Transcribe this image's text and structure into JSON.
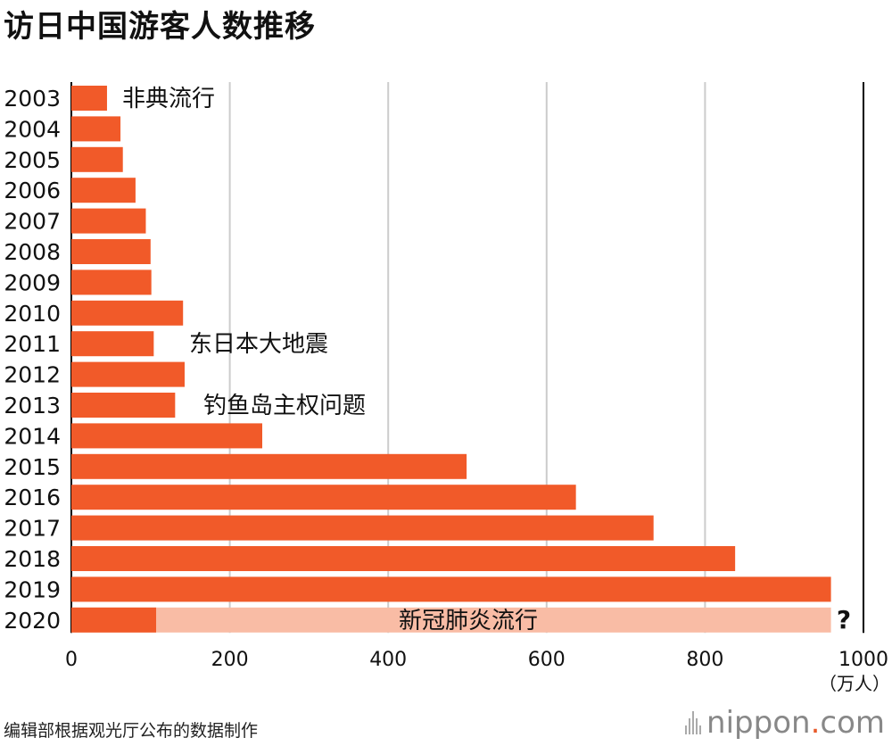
{
  "title": "访日中国游客人数推移",
  "chart_data": {
    "type": "bar",
    "orientation": "horizontal",
    "categories": [
      "2003",
      "2004",
      "2005",
      "2006",
      "2007",
      "2008",
      "2009",
      "2010",
      "2011",
      "2012",
      "2013",
      "2014",
      "2015",
      "2016",
      "2017",
      "2018",
      "2019",
      "2020"
    ],
    "values": [
      45,
      62,
      65,
      81,
      94,
      100,
      101,
      141,
      104,
      143,
      131,
      241,
      499,
      637,
      735,
      838,
      959,
      107
    ],
    "projection": {
      "category": "2020",
      "value": 959
    },
    "xlim": [
      0,
      1000
    ],
    "xticks": [
      0,
      200,
      400,
      600,
      800,
      1000
    ],
    "xtick_labels": [
      "0",
      "200",
      "400",
      "600",
      "800",
      "1000"
    ],
    "unit_label": "（万人）",
    "grid": true,
    "annotations": [
      {
        "category": "2003",
        "text": "非典流行"
      },
      {
        "category": "2011",
        "text": "东日本大地震"
      },
      {
        "category": "2013",
        "text": "钓鱼岛主权问题"
      },
      {
        "category": "2020",
        "text": "新冠肺炎流行"
      },
      {
        "category": "2020",
        "text": "?"
      }
    ],
    "colors": {
      "bar": "#f15a29",
      "projection": "#f9bca5",
      "grid": "#cccccc",
      "axis": "#000000"
    }
  },
  "source": "编辑部根据观光厅公布的数据制作",
  "logo": {
    "text": "nippon",
    "dot": ".",
    "suffix": "com"
  }
}
